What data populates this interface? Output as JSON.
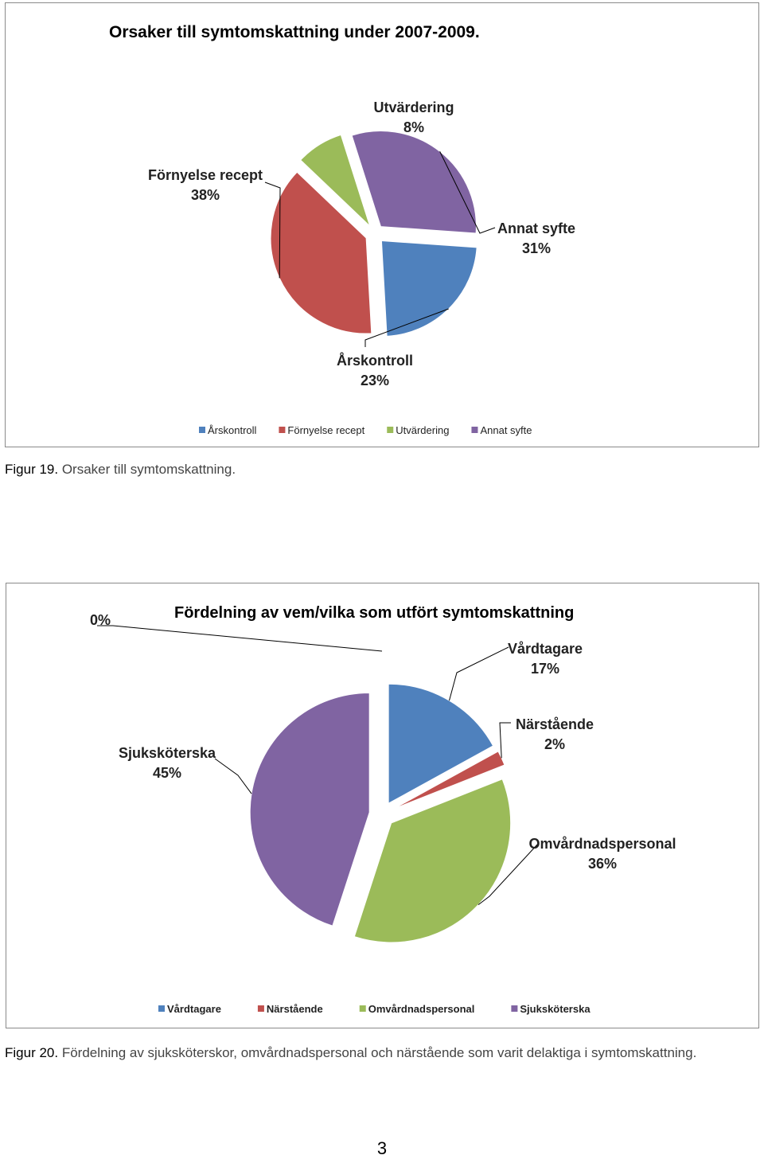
{
  "chart_data": [
    {
      "type": "pie",
      "title": "Orsaker till symtomskattning under 2007-2009.",
      "slices": [
        {
          "label": "Årskontroll",
          "value": 23,
          "value_label": "23%",
          "color": "#4F81BD"
        },
        {
          "label": "Förnyelse recept",
          "value": 38,
          "value_label": "38%",
          "color": "#C0504D"
        },
        {
          "label": "Utvärdering",
          "value": 8,
          "value_label": "8%",
          "color": "#9BBB59"
        },
        {
          "label": "Annat syfte",
          "value": 31,
          "value_label": "31%",
          "color": "#8064A2"
        }
      ],
      "exploded": true,
      "legend_position": "bottom"
    },
    {
      "type": "pie",
      "title": "Fördelning  av vem/vilka som utfört symtomskattning",
      "slices": [
        {
          "label": "Vårdtagare",
          "value": 17,
          "value_label": "17%",
          "color": "#4F81BD"
        },
        {
          "label": "Närstående",
          "value": 2,
          "value_label": "2%",
          "color": "#C0504D"
        },
        {
          "label": "Omvårdnadspersonal",
          "value": 36,
          "value_label": "36%",
          "color": "#9BBB59"
        },
        {
          "label": "Sjuksköterska",
          "value": 45,
          "value_label": "45%",
          "color": "#8064A2"
        }
      ],
      "extra_annotation": "0%",
      "exploded": true,
      "legend_position": "bottom"
    }
  ],
  "captions": {
    "fig19_lead": "Figur 19.",
    "fig19_text": " Orsaker till symtomskattning.",
    "fig20_lead": "Figur 20.",
    "fig20_text": " Fördelning av sjuksköterskor, omvårdnadspersonal och närstående som varit delaktiga i symtomskattning."
  },
  "page_number": "3"
}
